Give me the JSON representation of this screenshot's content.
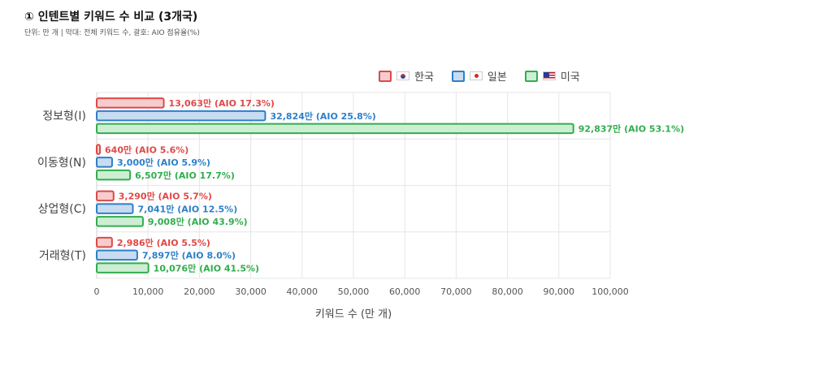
{
  "title": "① 인텐트별 키워드 수 비교 (3개국)",
  "subtitle": "단위: 만 개 | 막대: 전체 키워드 수, 괄호: AIO 점유율(%)",
  "colors": {
    "kr": {
      "stroke": "#e04848",
      "fill": "#f6cccc",
      "label": "#e04848"
    },
    "jp": {
      "stroke": "#2d7fc9",
      "fill": "#c8dcf1",
      "label": "#2d7fc9"
    },
    "us": {
      "stroke": "#31ad4e",
      "fill": "#cdeed3",
      "label": "#31ad4e"
    }
  },
  "chart_data": {
    "type": "bar",
    "orientation": "horizontal",
    "categories": [
      "정보형(I)",
      "이동형(N)",
      "상업형(C)",
      "거래형(T)"
    ],
    "series": [
      {
        "name": "한국",
        "key": "kr",
        "flag_icon": "korea-flag-icon",
        "values": [
          13063,
          640,
          3290,
          2986
        ],
        "labels": [
          "13,063만 (AIO 17.3%)",
          "640만 (AIO 5.6%)",
          "3,290만 (AIO 5.7%)",
          "2,986만 (AIO 5.5%)"
        ]
      },
      {
        "name": "일본",
        "key": "jp",
        "flag_icon": "japan-flag-icon",
        "values": [
          32824,
          3000,
          7041,
          7897
        ],
        "labels": [
          "32,824만 (AIO 25.8%)",
          "3,000만 (AIO 5.9%)",
          "7,041만 (AIO 12.5%)",
          "7,897만 (AIO 8.0%)"
        ]
      },
      {
        "name": "미국",
        "key": "us",
        "flag_icon": "usa-flag-icon",
        "values": [
          92837,
          6507,
          9008,
          10076
        ],
        "labels": [
          "92,837만 (AIO 53.1%)",
          "6,507만 (AIO 17.7%)",
          "9,008만 (AIO 43.9%)",
          "10,076만 (AIO 41.5%)"
        ]
      }
    ],
    "xlim": [
      0,
      100000
    ],
    "xticks": [
      "0",
      "10,000",
      "20,000",
      "30,000",
      "40,000",
      "50,000",
      "60,000",
      "70,000",
      "80,000",
      "90,000",
      "100,000"
    ],
    "xlabel": "키워드 수 (만 개)",
    "ylabel": "",
    "grid": true,
    "legend": "top-right"
  }
}
